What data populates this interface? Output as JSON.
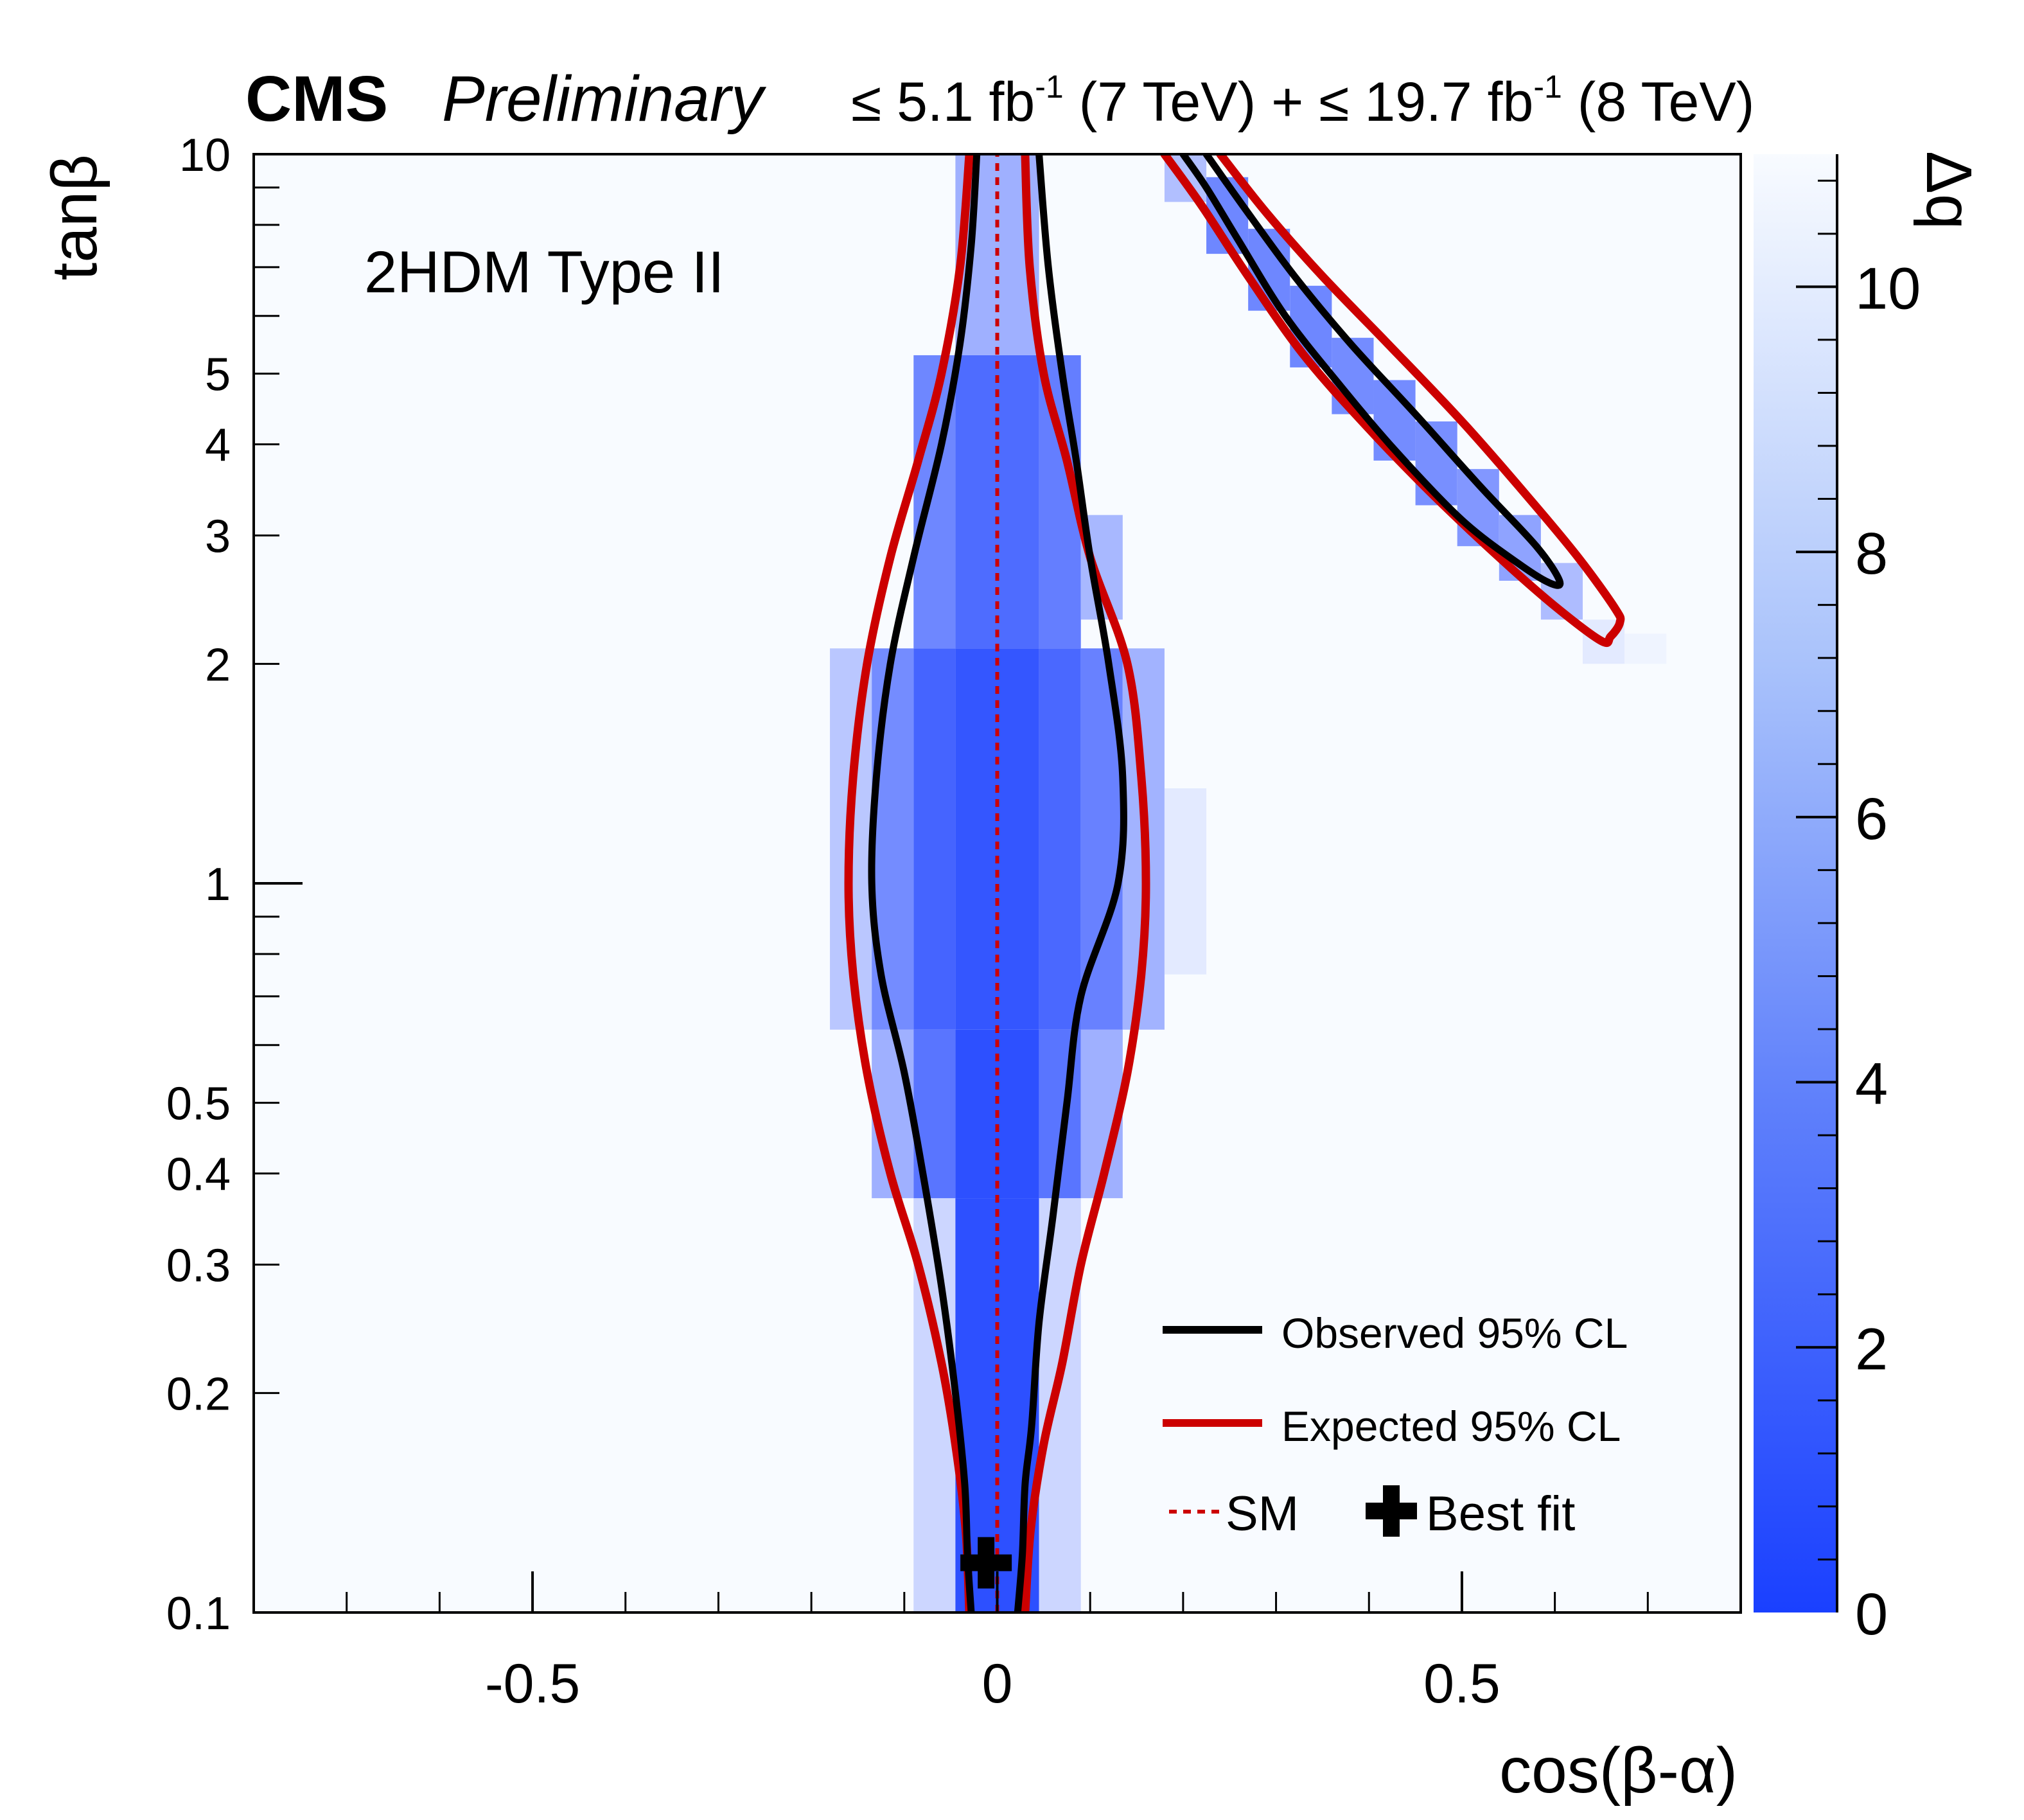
{
  "header": {
    "experiment": "CMS",
    "status": "Preliminary",
    "lumi_7_prefix": "≤ 5.1 fb",
    "lumi_7_exp": "-1",
    "lumi_7_suffix": " (7 TeV) + ",
    "lumi_8_prefix": "≤ 19.7 fb",
    "lumi_8_exp": "-1",
    "lumi_8_suffix": " (8 TeV)"
  },
  "chart_data": {
    "type": "heatmap",
    "title": "2HDM Type II",
    "xlabel": "cos(β-α)",
    "ylabel": "tanβ",
    "zlabel": "Δq",
    "xlim": [
      -0.8,
      0.8
    ],
    "ylim": [
      0.1,
      10
    ],
    "yscale": "log",
    "zlim": [
      0,
      11
    ],
    "x_ticks": [
      -0.5,
      0,
      0.5
    ],
    "x_tick_labels": [
      "-0.5",
      "0",
      "0.5"
    ],
    "y_ticks": [
      0.1,
      0.2,
      0.3,
      0.4,
      0.5,
      1,
      2,
      3,
      4,
      5,
      10
    ],
    "y_tick_labels": [
      "0.1",
      "0.2",
      "0.3",
      "0.4",
      "0.5",
      "1",
      "2",
      "3",
      "4",
      "5",
      "10"
    ],
    "z_ticks": [
      0,
      2,
      4,
      6,
      8,
      10
    ],
    "z_tick_labels": [
      "0",
      "2",
      "4",
      "6",
      "8",
      "10"
    ],
    "colormap": {
      "low": "#1a40ff",
      "high": "#f8fbff"
    },
    "heat_cells": [
      {
        "x0": -0.09,
        "x1": -0.045,
        "y0": 0.1,
        "y1": 0.37,
        "z": 8.5
      },
      {
        "x0": -0.045,
        "x1": 0.045,
        "y0": 0.1,
        "y1": 0.37,
        "z": 0.6
      },
      {
        "x0": 0.045,
        "x1": 0.09,
        "y0": 0.1,
        "y1": 0.37,
        "z": 8.5
      },
      {
        "x0": -0.135,
        "x1": -0.09,
        "y0": 0.37,
        "y1": 0.63,
        "z": 6.0
      },
      {
        "x0": -0.09,
        "x1": -0.045,
        "y0": 0.37,
        "y1": 0.63,
        "z": 2.5
      },
      {
        "x0": -0.045,
        "x1": 0.045,
        "y0": 0.37,
        "y1": 0.63,
        "z": 0.6
      },
      {
        "x0": 0.045,
        "x1": 0.09,
        "y0": 0.37,
        "y1": 0.63,
        "z": 2.5
      },
      {
        "x0": 0.09,
        "x1": 0.135,
        "y0": 0.37,
        "y1": 0.63,
        "z": 6.0
      },
      {
        "x0": -0.18,
        "x1": -0.135,
        "y0": 0.63,
        "y1": 2.1,
        "z": 7.5
      },
      {
        "x0": -0.135,
        "x1": -0.09,
        "y0": 0.63,
        "y1": 2.1,
        "z": 3.8
      },
      {
        "x0": -0.09,
        "x1": -0.045,
        "y0": 0.63,
        "y1": 2.1,
        "z": 1.6
      },
      {
        "x0": -0.045,
        "x1": 0.045,
        "y0": 0.63,
        "y1": 2.1,
        "z": 0.9
      },
      {
        "x0": 0.045,
        "x1": 0.09,
        "y0": 0.63,
        "y1": 2.1,
        "z": 1.8
      },
      {
        "x0": 0.09,
        "x1": 0.135,
        "y0": 0.63,
        "y1": 2.1,
        "z": 3.2
      },
      {
        "x0": 0.135,
        "x1": 0.18,
        "y0": 0.63,
        "y1": 2.1,
        "z": 6.2
      },
      {
        "x0": 0.18,
        "x1": 0.225,
        "y0": 0.75,
        "y1": 1.35,
        "z": 9.8
      },
      {
        "x0": -0.09,
        "x1": -0.045,
        "y0": 2.1,
        "y1": 5.3,
        "z": 3.5
      },
      {
        "x0": -0.045,
        "x1": 0.045,
        "y0": 2.1,
        "y1": 5.3,
        "z": 2.0
      },
      {
        "x0": 0.045,
        "x1": 0.09,
        "y0": 2.1,
        "y1": 5.3,
        "z": 3.0
      },
      {
        "x0": 0.09,
        "x1": 0.135,
        "y0": 2.3,
        "y1": 3.2,
        "z": 6.5
      },
      {
        "x0": -0.045,
        "x1": 0.045,
        "y0": 5.3,
        "y1": 10,
        "z": 6.0
      }
    ],
    "band_cells": [
      {
        "x0": 0.18,
        "x1": 0.225,
        "y0": 8.6,
        "y1": 10,
        "z": 7.0
      },
      {
        "x0": 0.225,
        "x1": 0.27,
        "y0": 7.3,
        "y1": 9.3,
        "z": 3.5
      },
      {
        "x0": 0.27,
        "x1": 0.315,
        "y0": 6.1,
        "y1": 7.9,
        "z": 3.5
      },
      {
        "x0": 0.315,
        "x1": 0.36,
        "y0": 5.1,
        "y1": 6.6,
        "z": 3.5
      },
      {
        "x0": 0.36,
        "x1": 0.405,
        "y0": 4.4,
        "y1": 5.6,
        "z": 3.8
      },
      {
        "x0": 0.405,
        "x1": 0.45,
        "y0": 3.8,
        "y1": 4.9,
        "z": 3.8
      },
      {
        "x0": 0.45,
        "x1": 0.495,
        "y0": 3.3,
        "y1": 4.3,
        "z": 4.0
      },
      {
        "x0": 0.495,
        "x1": 0.54,
        "y0": 2.9,
        "y1": 3.7,
        "z": 4.5
      },
      {
        "x0": 0.54,
        "x1": 0.585,
        "y0": 2.6,
        "y1": 3.2,
        "z": 5.2
      },
      {
        "x0": 0.585,
        "x1": 0.63,
        "y0": 2.3,
        "y1": 2.75,
        "z": 6.8
      },
      {
        "x0": 0.63,
        "x1": 0.675,
        "y0": 2.0,
        "y1": 2.3,
        "z": 9.8
      },
      {
        "x0": 0.675,
        "x1": 0.72,
        "y0": 2.0,
        "y1": 2.2,
        "z": 10.5
      }
    ],
    "series": [
      {
        "name": "Observed 95% CL",
        "color": "#000000",
        "line": "solid",
        "contours": [
          [
            [
              -0.028,
              0.1
            ],
            [
              -0.032,
              0.12
            ],
            [
              -0.035,
              0.15
            ],
            [
              -0.045,
              0.2
            ],
            [
              -0.06,
              0.28
            ],
            [
              -0.08,
              0.4
            ],
            [
              -0.1,
              0.55
            ],
            [
              -0.125,
              0.75
            ],
            [
              -0.135,
              1.0
            ],
            [
              -0.13,
              1.4
            ],
            [
              -0.115,
              2.0
            ],
            [
              -0.09,
              2.8
            ],
            [
              -0.06,
              4.0
            ],
            [
              -0.04,
              5.5
            ],
            [
              -0.028,
              7.5
            ],
            [
              -0.022,
              10.0
            ]
          ],
          [
            [
              0.022,
              0.1
            ],
            [
              0.027,
              0.12
            ],
            [
              0.03,
              0.15
            ],
            [
              0.037,
              0.18
            ],
            [
              0.045,
              0.25
            ],
            [
              0.06,
              0.35
            ],
            [
              0.075,
              0.5
            ],
            [
              0.09,
              0.7
            ],
            [
              0.13,
              1.0
            ],
            [
              0.135,
              1.4
            ],
            [
              0.12,
              2.0
            ],
            [
              0.1,
              2.8
            ],
            [
              0.085,
              3.8
            ],
            [
              0.07,
              5.0
            ],
            [
              0.055,
              7.0
            ],
            [
              0.045,
              10.0
            ]
          ],
          [
            [
              0.225,
              10.0
            ],
            [
              0.27,
              8.3
            ],
            [
              0.32,
              6.8
            ],
            [
              0.38,
              5.5
            ],
            [
              0.45,
              4.4
            ],
            [
              0.52,
              3.5
            ],
            [
              0.58,
              2.9
            ],
            [
              0.605,
              2.6
            ],
            [
              0.595,
              2.58
            ],
            [
              0.56,
              2.75
            ],
            [
              0.5,
              3.15
            ],
            [
              0.43,
              3.9
            ],
            [
              0.37,
              4.8
            ],
            [
              0.31,
              6.0
            ],
            [
              0.26,
              7.6
            ],
            [
              0.225,
              9.0
            ],
            [
              0.2,
              10.0
            ]
          ]
        ]
      },
      {
        "name": "Expected 95% CL",
        "color": "#cc0000",
        "line": "solid",
        "contours": [
          [
            [
              -0.03,
              0.1
            ],
            [
              -0.034,
              0.13
            ],
            [
              -0.045,
              0.17
            ],
            [
              -0.06,
              0.22
            ],
            [
              -0.085,
              0.3
            ],
            [
              -0.115,
              0.4
            ],
            [
              -0.14,
              0.55
            ],
            [
              -0.155,
              0.75
            ],
            [
              -0.16,
              1.0
            ],
            [
              -0.155,
              1.4
            ],
            [
              -0.14,
              2.0
            ],
            [
              -0.115,
              2.8
            ],
            [
              -0.085,
              3.8
            ],
            [
              -0.06,
              5.0
            ],
            [
              -0.04,
              7.0
            ],
            [
              -0.03,
              10.0
            ]
          ],
          [
            [
              0.03,
              0.1
            ],
            [
              0.036,
              0.13
            ],
            [
              0.05,
              0.17
            ],
            [
              0.07,
              0.22
            ],
            [
              0.09,
              0.3
            ],
            [
              0.115,
              0.4
            ],
            [
              0.14,
              0.55
            ],
            [
              0.155,
              0.75
            ],
            [
              0.16,
              1.0
            ],
            [
              0.155,
              1.4
            ],
            [
              0.14,
              2.0
            ],
            [
              0.1,
              2.8
            ],
            [
              0.075,
              3.8
            ],
            [
              0.05,
              5.0
            ],
            [
              0.035,
              7.0
            ],
            [
              0.03,
              10.0
            ]
          ],
          [
            [
              0.24,
              10.0
            ],
            [
              0.29,
              8.3
            ],
            [
              0.35,
              6.8
            ],
            [
              0.42,
              5.5
            ],
            [
              0.5,
              4.3
            ],
            [
              0.57,
              3.4
            ],
            [
              0.625,
              2.8
            ],
            [
              0.665,
              2.38
            ],
            [
              0.67,
              2.28
            ],
            [
              0.66,
              2.18
            ],
            [
              0.65,
              2.15
            ],
            [
              0.6,
              2.4
            ],
            [
              0.54,
              2.8
            ],
            [
              0.47,
              3.4
            ],
            [
              0.4,
              4.2
            ],
            [
              0.33,
              5.3
            ],
            [
              0.27,
              6.8
            ],
            [
              0.22,
              8.5
            ],
            [
              0.18,
              10.0
            ]
          ]
        ]
      },
      {
        "name": "SM",
        "color": "#cc0000",
        "line": "dotted",
        "x": [
          0,
          0
        ],
        "y": [
          0.1,
          10
        ]
      }
    ],
    "best_fit": {
      "name": "Best fit",
      "x": -0.012,
      "y": 0.117
    },
    "legend": {
      "position": "bottom-right",
      "observed_label": "Observed 95% CL",
      "expected_label": "Expected 95% CL",
      "sm_label": "SM",
      "best_fit_label": "Best fit"
    }
  }
}
